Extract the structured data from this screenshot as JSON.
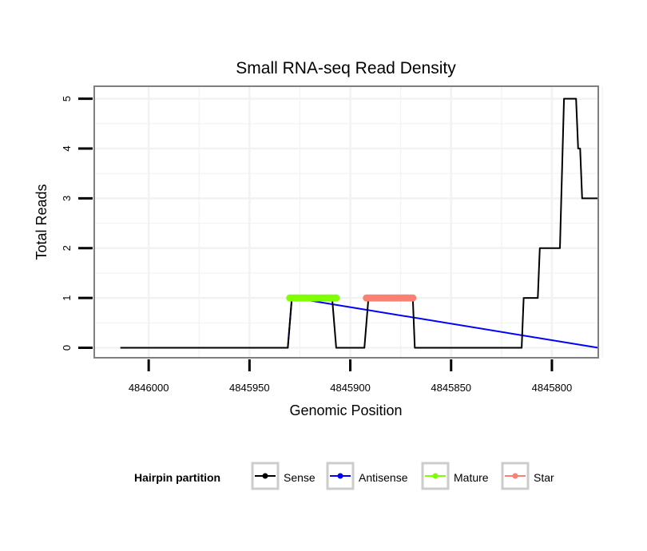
{
  "chart_data": {
    "type": "line",
    "title": "Small RNA-seq Read Density",
    "xlabel": "Genomic Position",
    "ylabel": "Total Reads",
    "x_reversed": true,
    "xlim": [
      4846027,
      4845777
    ],
    "ylim": [
      -0.2,
      5.25
    ],
    "xticks": [
      4846000,
      4845950,
      4845900,
      4845850,
      4845800
    ],
    "xtick_labels": [
      "4846000",
      "4845950",
      "4845900",
      "4845850",
      "4845800"
    ],
    "yticks": [
      0,
      1,
      2,
      3,
      4,
      5
    ],
    "ytick_labels": [
      "0",
      "1",
      "2",
      "3",
      "4",
      "5"
    ],
    "grid": true,
    "legend": {
      "title": "Hairpin partition",
      "position": "bottom",
      "entries": [
        "Sense",
        "Antisense",
        "Mature",
        "Star"
      ]
    },
    "series": [
      {
        "name": "Sense",
        "color": "#000000",
        "points": [
          [
            4846014,
            0
          ],
          [
            4845931,
            0
          ],
          [
            4845929,
            1
          ],
          [
            4845909,
            1
          ],
          [
            4845907,
            0
          ],
          [
            4845893,
            0
          ],
          [
            4845891,
            1
          ],
          [
            4845869,
            1
          ],
          [
            4845868,
            0
          ],
          [
            4845815,
            0
          ],
          [
            4845814,
            1
          ],
          [
            4845807,
            1
          ],
          [
            4845806,
            2
          ],
          [
            4845796,
            2
          ],
          [
            4845794,
            5
          ],
          [
            4845788,
            5
          ],
          [
            4845787,
            4
          ],
          [
            4845786,
            4
          ],
          [
            4845785,
            3
          ],
          [
            4845777,
            3
          ]
        ]
      },
      {
        "name": "Antisense",
        "color": "#0000ff",
        "points": [
          [
            4846014,
            0
          ],
          [
            4845931,
            0
          ],
          [
            4845929,
            1
          ],
          [
            4845928,
            1
          ],
          [
            4845777,
            0
          ]
        ]
      },
      {
        "name": "Mature",
        "color": "#7fff00",
        "x": [
          4845930,
          4845929,
          4845928,
          4845927,
          4845926,
          4845925,
          4845924,
          4845923,
          4845922,
          4845921,
          4845920,
          4845919,
          4845918,
          4845917,
          4845916,
          4845915,
          4845914,
          4845913,
          4845912,
          4845911,
          4845910,
          4845909,
          4845908,
          4845907
        ],
        "y": [
          1,
          1,
          1,
          1,
          1,
          1,
          1,
          1,
          1,
          1,
          1,
          1,
          1,
          1,
          1,
          1,
          1,
          1,
          1,
          1,
          1,
          1,
          1,
          1
        ]
      },
      {
        "name": "Star",
        "color": "#fa8072",
        "x": [
          4845892,
          4845891,
          4845890,
          4845889,
          4845888,
          4845887,
          4845886,
          4845885,
          4845884,
          4845883,
          4845882,
          4845881,
          4845880,
          4845879,
          4845878,
          4845877,
          4845876,
          4845875,
          4845874,
          4845873,
          4845872,
          4845871,
          4845870,
          4845869
        ],
        "y": [
          1,
          1,
          1,
          1,
          1,
          1,
          1,
          1,
          1,
          1,
          1,
          1,
          1,
          1,
          1,
          1,
          1,
          1,
          1,
          1,
          1,
          1,
          1,
          1
        ]
      }
    ]
  }
}
